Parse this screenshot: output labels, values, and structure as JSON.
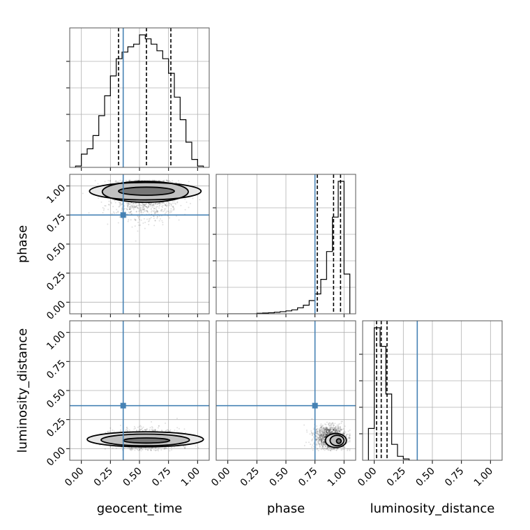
{
  "chart_data": {
    "type": "corner",
    "parameters": [
      "geocent_time",
      "phase",
      "luminosity_distance"
    ],
    "axis_range": [
      -0.1,
      1.1
    ],
    "ticks": [
      0.0,
      0.25,
      0.5,
      0.75,
      1.0
    ],
    "tick_labels": [
      "0.00",
      "0.25",
      "0.50",
      "0.75",
      "1.00"
    ],
    "grid": true,
    "truths": {
      "geocent_time": 0.36,
      "phase": 0.75,
      "luminosity_distance": 0.37
    },
    "colors": {
      "truth": "#4682b4",
      "hist": "#000000",
      "grid": "#b0b0b0",
      "frame": "#555555"
    },
    "histograms": [
      {
        "parameter": "geocent_time",
        "bin_edges": [
          -0.05,
          0.0,
          0.05,
          0.1,
          0.15,
          0.2,
          0.25,
          0.3,
          0.35,
          0.4,
          0.45,
          0.5,
          0.55,
          0.6,
          0.65,
          0.7,
          0.75,
          0.8,
          0.85,
          0.9,
          0.95,
          1.0,
          1.05
        ],
        "counts": [
          0.01,
          0.1,
          0.14,
          0.24,
          0.39,
          0.54,
          0.69,
          0.82,
          0.87,
          0.91,
          0.93,
          1.0,
          0.97,
          0.93,
          0.88,
          0.82,
          0.71,
          0.53,
          0.36,
          0.19,
          0.06,
          0.01
        ],
        "quantiles": [
          0.32,
          0.56,
          0.77
        ]
      },
      {
        "parameter": "phase",
        "bin_edges": [
          0.0,
          0.05,
          0.1,
          0.15,
          0.2,
          0.25,
          0.3,
          0.35,
          0.4,
          0.45,
          0.5,
          0.55,
          0.6,
          0.65,
          0.7,
          0.75,
          0.8,
          0.85,
          0.9,
          0.95,
          1.0,
          1.05
        ],
        "counts": [
          0.0,
          0.0,
          0.0,
          0.0,
          0.0,
          0.004,
          0.006,
          0.008,
          0.012,
          0.016,
          0.022,
          0.03,
          0.045,
          0.065,
          0.1,
          0.15,
          0.26,
          0.47,
          0.73,
          1.0,
          0.3
        ],
        "quantiles": [
          0.77,
          0.91,
          0.97
        ]
      },
      {
        "parameter": "luminosity_distance",
        "bin_edges": [
          -0.05,
          0.0,
          0.05,
          0.1,
          0.15,
          0.2,
          0.25,
          0.3
        ],
        "counts": [
          0.24,
          1.0,
          0.86,
          0.5,
          0.12,
          0.03,
          0.01
        ],
        "quantiles": [
          0.02,
          0.06,
          0.11
        ]
      }
    ],
    "panels_2d": [
      {
        "x": "geocent_time",
        "y": "phase",
        "scatter_center": [
          0.55,
          0.92
        ],
        "scatter_spread": [
          0.26,
          0.14
        ],
        "contour_levels": [
          {
            "center": [
              0.55,
              0.955
            ],
            "half_width": [
              0.48,
              0.075
            ]
          },
          {
            "center": [
              0.55,
              0.95
            ],
            "half_width": [
              0.37,
              0.09
            ]
          },
          {
            "center": [
              0.56,
              0.955
            ],
            "half_width": [
              0.24,
              0.035
            ]
          }
        ]
      },
      {
        "x": "geocent_time",
        "y": "luminosity_distance",
        "scatter_center": [
          0.55,
          0.08
        ],
        "scatter_spread": [
          0.26,
          0.06
        ],
        "contour_levels": [
          {
            "center": [
              0.55,
              0.08
            ],
            "half_width": [
              0.5,
              0.065
            ]
          },
          {
            "center": [
              0.55,
              0.075
            ],
            "half_width": [
              0.38,
              0.05
            ]
          },
          {
            "center": [
              0.56,
              0.07
            ],
            "half_width": [
              0.2,
              0.022
            ]
          }
        ]
      },
      {
        "x": "phase",
        "y": "luminosity_distance",
        "scatter_center": [
          0.88,
          0.1
        ],
        "scatter_spread": [
          0.12,
          0.07
        ],
        "contour_levels": [
          {
            "center": [
              0.93,
              0.07
            ],
            "half_width": [
              0.09,
              0.06
            ]
          },
          {
            "center": [
              0.94,
              0.07
            ],
            "half_width": [
              0.06,
              0.045
            ]
          },
          {
            "center": [
              0.955,
              0.065
            ],
            "half_width": [
              0.02,
              0.02
            ]
          }
        ]
      }
    ]
  }
}
